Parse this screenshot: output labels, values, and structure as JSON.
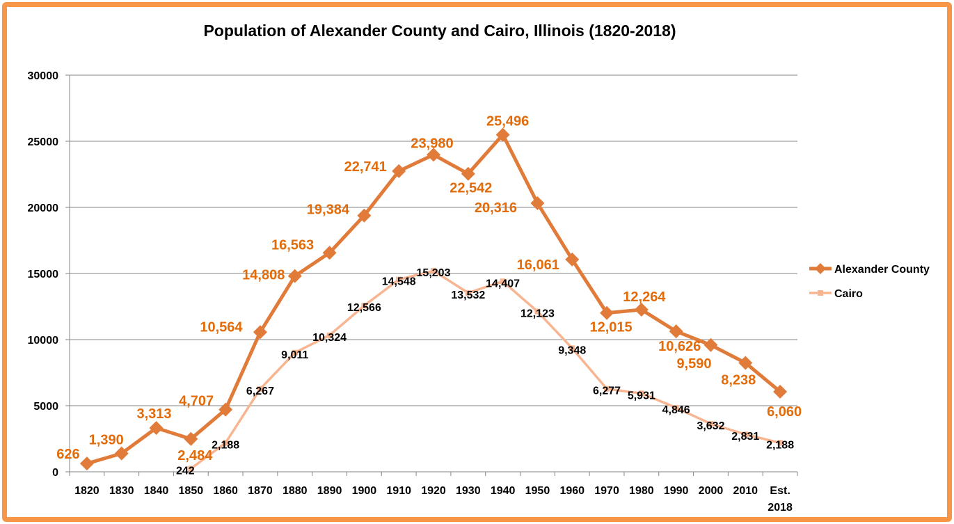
{
  "chart_data": {
    "type": "line",
    "title": "Population of Alexander County and Cairo, Illinois (1820-2018)",
    "xlabel": "",
    "ylabel": "",
    "ylim": [
      0,
      30000
    ],
    "yticks": [
      0,
      5000,
      10000,
      15000,
      20000,
      25000,
      30000
    ],
    "grid": true,
    "legend_position": "right",
    "categories": [
      "1820",
      "1830",
      "1840",
      "1850",
      "1860",
      "1870",
      "1880",
      "1890",
      "1900",
      "1910",
      "1920",
      "1930",
      "1940",
      "1950",
      "1960",
      "1970",
      "1980",
      "1990",
      "2000",
      "2010",
      "Est. 2018"
    ],
    "series": [
      {
        "name": "Alexander County",
        "color": "#E07B39",
        "label_color": "#E26B0A",
        "marker": "diamond",
        "values": [
          626,
          1390,
          3313,
          2484,
          4707,
          10564,
          14808,
          16563,
          19384,
          22741,
          23980,
          22542,
          25496,
          20316,
          16061,
          12015,
          12264,
          10626,
          9590,
          8238,
          6060
        ],
        "labels": [
          "626",
          "1,390",
          "3,313",
          "2,484",
          "4,707",
          "10,564",
          "14,808",
          "16,563",
          "19,384",
          "22,741",
          "23,980",
          "22,542",
          "25,496",
          "20,316",
          "16,061",
          "12,015",
          "12,264",
          "10,626",
          "9,590",
          "8,238",
          "6,060"
        ]
      },
      {
        "name": "Cairo",
        "color": "#F8B591",
        "label_color": "#000000",
        "marker": "square",
        "values": [
          null,
          null,
          null,
          242,
          2188,
          6267,
          9011,
          10324,
          12566,
          14548,
          15203,
          13532,
          14407,
          12123,
          9348,
          6277,
          5931,
          4846,
          3632,
          2831,
          2188
        ],
        "labels": [
          null,
          null,
          null,
          "242",
          "2,188",
          "6,267",
          "9,011",
          "10,324",
          "12,566",
          "14,548",
          "15,203",
          "13,532",
          "14,407",
          "12,123",
          "9,348",
          "6,277",
          "5,931",
          "4,846",
          "3,632",
          "2,831",
          "2,188"
        ]
      }
    ]
  },
  "frame_color": "#F79646"
}
